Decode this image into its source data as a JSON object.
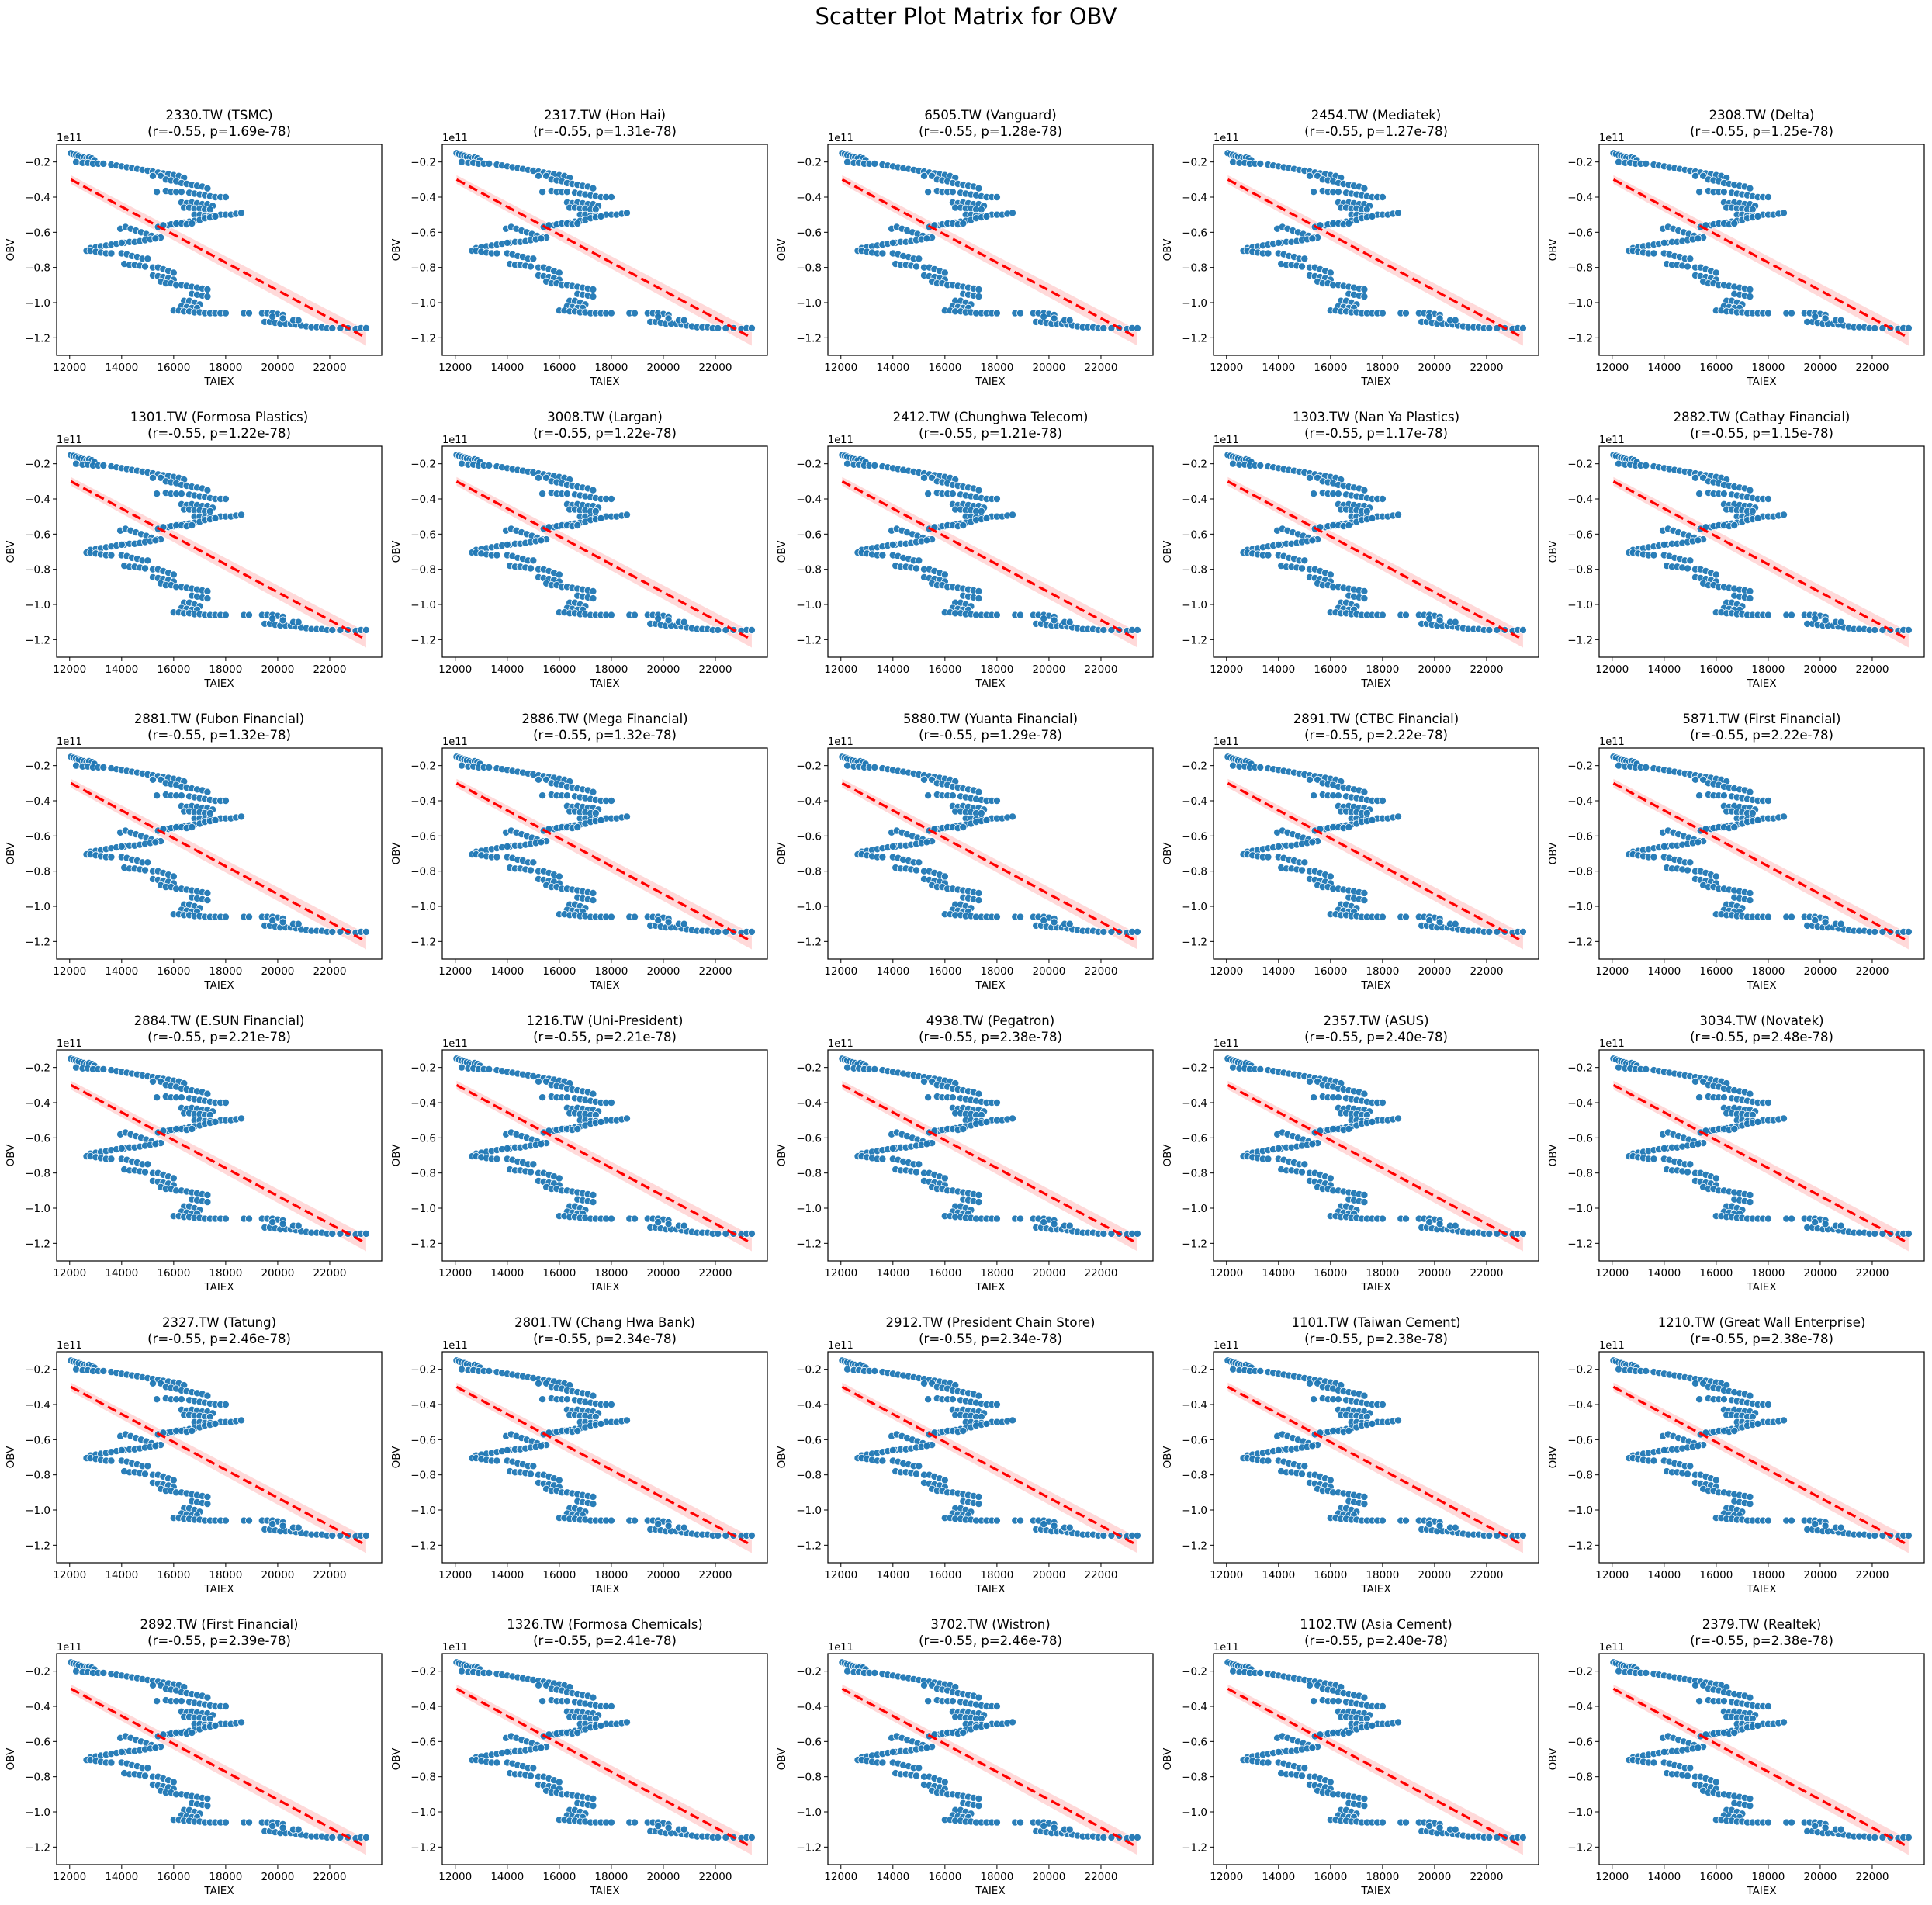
{
  "figure_title": "Scatter Plot Matrix for OBV",
  "chart_data": {
    "type": "scatter",
    "title": "Scatter Plot Matrix for OBV",
    "xlabel": "TAIEX",
    "ylabel": "OBV",
    "offset_label": "1e11",
    "xlim": [
      11500,
      24000
    ],
    "ylim": [
      -1.3,
      -0.1
    ],
    "xticks": [
      12000,
      14000,
      16000,
      18000,
      20000,
      22000
    ],
    "xtick_labels": [
      "12000",
      "14000",
      "16000",
      "18000",
      "20000",
      "22000"
    ],
    "yticks": [
      -0.2,
      -0.4,
      -0.6,
      -0.8,
      -1.0,
      -1.2
    ],
    "ytick_labels": [
      "−0.2",
      "−0.4",
      "−0.6",
      "−0.8",
      "−1.0",
      "−1.2"
    ],
    "grid": false,
    "point_color": "#1f77b4",
    "regression_color": "#ff0000",
    "regression_line": {
      "x": [
        12050,
        23400
      ],
      "y": [
        -0.3,
        -1.2
      ],
      "ci_halfwidth_ends": [
        0.025,
        0.045
      ]
    },
    "points_x": [
      12050,
      12150,
      12250,
      12350,
      12450,
      12550,
      12650,
      12750,
      12850,
      12950,
      12250,
      12500,
      12700,
      12900,
      13100,
      13300,
      13600,
      13800,
      14000,
      14200,
      14400,
      14600,
      14800,
      15000,
      15200,
      15400,
      15600,
      15800,
      16000,
      16200,
      16400,
      15200,
      15500,
      15700,
      15900,
      16100,
      16300,
      16500,
      16700,
      16900,
      17100,
      17300,
      15350,
      15700,
      15900,
      16100,
      16300,
      16600,
      16800,
      17000,
      17200,
      17400,
      17600,
      17800,
      18000,
      16300,
      16500,
      16700,
      16900,
      17100,
      17300,
      17500,
      16400,
      16600,
      16800,
      17000,
      17200,
      17400,
      16800,
      17000,
      17200,
      17400,
      17600,
      17800,
      18000,
      18200,
      18400,
      18600,
      15400,
      15600,
      15800,
      16000,
      16200,
      16400,
      16600,
      16800,
      17000,
      17200,
      17400,
      17600,
      15600,
      15900,
      16100,
      16300,
      16500,
      16700,
      13950,
      14150,
      14350,
      14550,
      14750,
      14950,
      15150,
      15350,
      15500,
      14100,
      14300,
      14500,
      14700,
      14900,
      15100,
      15300,
      12800,
      13000,
      13200,
      13400,
      13600,
      13800,
      14000,
      12650,
      12800,
      13000,
      13200,
      13400,
      13600,
      14000,
      14200,
      14400,
      14600,
      14800,
      15000,
      14100,
      14300,
      14500,
      14700,
      14900,
      15200,
      15400,
      15600,
      15800,
      16000,
      15200,
      15400,
      15600,
      15800,
      16000,
      15500,
      15700,
      15900,
      16100,
      16300,
      16500,
      16700,
      16900,
      17100,
      17300,
      16700,
      16900,
      17100,
      17300,
      16400,
      16600,
      16800,
      17000,
      16300,
      16500,
      16700,
      16900,
      16000,
      16200,
      16400,
      16600,
      16800,
      17000,
      17200,
      17400,
      17600,
      17800,
      18000,
      18700,
      18900,
      19400,
      19600,
      19800,
      20000,
      20200,
      19500,
      19700,
      19900,
      20100,
      20300,
      20500,
      20700,
      20900,
      21100,
      21300,
      21500,
      21700,
      21900,
      22100,
      22400,
      22700,
      23000,
      23200,
      23400,
      19800,
      20200,
      20600,
      20800
    ],
    "points_y": [
      -0.15,
      -0.155,
      -0.16,
      -0.165,
      -0.17,
      -0.175,
      -0.18,
      -0.175,
      -0.18,
      -0.19,
      -0.2,
      -0.205,
      -0.205,
      -0.21,
      -0.21,
      -0.21,
      -0.215,
      -0.22,
      -0.225,
      -0.23,
      -0.235,
      -0.24,
      -0.245,
      -0.25,
      -0.255,
      -0.26,
      -0.265,
      -0.27,
      -0.275,
      -0.28,
      -0.29,
      -0.28,
      -0.28,
      -0.3,
      -0.305,
      -0.31,
      -0.32,
      -0.325,
      -0.33,
      -0.335,
      -0.34,
      -0.35,
      -0.37,
      -0.365,
      -0.37,
      -0.37,
      -0.37,
      -0.375,
      -0.38,
      -0.385,
      -0.39,
      -0.395,
      -0.4,
      -0.4,
      -0.4,
      -0.43,
      -0.435,
      -0.43,
      -0.435,
      -0.44,
      -0.44,
      -0.45,
      -0.46,
      -0.46,
      -0.465,
      -0.465,
      -0.47,
      -0.47,
      -0.5,
      -0.5,
      -0.505,
      -0.505,
      -0.51,
      -0.5,
      -0.5,
      -0.5,
      -0.495,
      -0.49,
      -0.57,
      -0.565,
      -0.56,
      -0.555,
      -0.55,
      -0.545,
      -0.54,
      -0.535,
      -0.53,
      -0.52,
      -0.515,
      -0.51,
      -0.56,
      -0.555,
      -0.55,
      -0.55,
      -0.555,
      -0.55,
      -0.58,
      -0.57,
      -0.58,
      -0.59,
      -0.6,
      -0.61,
      -0.62,
      -0.63,
      -0.63,
      -0.66,
      -0.655,
      -0.655,
      -0.65,
      -0.645,
      -0.64,
      -0.635,
      -0.69,
      -0.685,
      -0.68,
      -0.675,
      -0.67,
      -0.665,
      -0.66,
      -0.705,
      -0.705,
      -0.71,
      -0.715,
      -0.72,
      -0.72,
      -0.72,
      -0.725,
      -0.735,
      -0.74,
      -0.75,
      -0.75,
      -0.78,
      -0.785,
      -0.785,
      -0.79,
      -0.795,
      -0.8,
      -0.8,
      -0.81,
      -0.82,
      -0.83,
      -0.845,
      -0.85,
      -0.855,
      -0.86,
      -0.87,
      -0.88,
      -0.89,
      -0.89,
      -0.9,
      -0.9,
      -0.905,
      -0.91,
      -0.915,
      -0.92,
      -0.925,
      -0.95,
      -0.955,
      -0.96,
      -0.965,
      -0.99,
      -0.99,
      -1.0,
      -1.01,
      -1.02,
      -1.025,
      -1.03,
      -1.03,
      -1.045,
      -1.045,
      -1.05,
      -1.05,
      -1.055,
      -1.055,
      -1.06,
      -1.06,
      -1.06,
      -1.06,
      -1.06,
      -1.06,
      -1.06,
      -1.06,
      -1.06,
      -1.06,
      -1.065,
      -1.07,
      -1.11,
      -1.11,
      -1.115,
      -1.12,
      -1.12,
      -1.12,
      -1.125,
      -1.13,
      -1.135,
      -1.14,
      -1.14,
      -1.14,
      -1.145,
      -1.145,
      -1.145,
      -1.145,
      -1.15,
      -1.145,
      -1.145,
      -1.08,
      -1.09,
      -1.1,
      -1.1
    ],
    "panels": [
      {
        "title": "2330.TW (TSMC)",
        "stats": "(r=-0.55, p=1.69e-78)"
      },
      {
        "title": "2317.TW (Hon Hai)",
        "stats": "(r=-0.55, p=1.31e-78)"
      },
      {
        "title": "6505.TW (Vanguard)",
        "stats": "(r=-0.55, p=1.28e-78)"
      },
      {
        "title": "2454.TW (Mediatek)",
        "stats": "(r=-0.55, p=1.27e-78)"
      },
      {
        "title": "2308.TW (Delta)",
        "stats": "(r=-0.55, p=1.25e-78)"
      },
      {
        "title": "1301.TW (Formosa Plastics)",
        "stats": "(r=-0.55, p=1.22e-78)"
      },
      {
        "title": "3008.TW (Largan)",
        "stats": "(r=-0.55, p=1.22e-78)"
      },
      {
        "title": "2412.TW (Chunghwa Telecom)",
        "stats": "(r=-0.55, p=1.21e-78)"
      },
      {
        "title": "1303.TW (Nan Ya Plastics)",
        "stats": "(r=-0.55, p=1.17e-78)"
      },
      {
        "title": "2882.TW (Cathay Financial)",
        "stats": "(r=-0.55, p=1.15e-78)"
      },
      {
        "title": "2881.TW (Fubon Financial)",
        "stats": "(r=-0.55, p=1.32e-78)"
      },
      {
        "title": "2886.TW (Mega Financial)",
        "stats": "(r=-0.55, p=1.32e-78)"
      },
      {
        "title": "5880.TW (Yuanta Financial)",
        "stats": "(r=-0.55, p=1.29e-78)"
      },
      {
        "title": "2891.TW (CTBC Financial)",
        "stats": "(r=-0.55, p=2.22e-78)"
      },
      {
        "title": "5871.TW (First Financial)",
        "stats": "(r=-0.55, p=2.22e-78)"
      },
      {
        "title": "2884.TW (E.SUN Financial)",
        "stats": "(r=-0.55, p=2.21e-78)"
      },
      {
        "title": "1216.TW (Uni-President)",
        "stats": "(r=-0.55, p=2.21e-78)"
      },
      {
        "title": "4938.TW (Pegatron)",
        "stats": "(r=-0.55, p=2.38e-78)"
      },
      {
        "title": "2357.TW (ASUS)",
        "stats": "(r=-0.55, p=2.40e-78)"
      },
      {
        "title": "3034.TW (Novatek)",
        "stats": "(r=-0.55, p=2.48e-78)"
      },
      {
        "title": "2327.TW (Tatung)",
        "stats": "(r=-0.55, p=2.46e-78)"
      },
      {
        "title": "2801.TW (Chang Hwa Bank)",
        "stats": "(r=-0.55, p=2.34e-78)"
      },
      {
        "title": "2912.TW (President Chain Store)",
        "stats": "(r=-0.55, p=2.34e-78)"
      },
      {
        "title": "1101.TW (Taiwan Cement)",
        "stats": "(r=-0.55, p=2.38e-78)"
      },
      {
        "title": "1210.TW (Great Wall Enterprise)",
        "stats": "(r=-0.55, p=2.38e-78)"
      },
      {
        "title": "2892.TW (First Financial)",
        "stats": "(r=-0.55, p=2.39e-78)"
      },
      {
        "title": "1326.TW (Formosa Chemicals)",
        "stats": "(r=-0.55, p=2.41e-78)"
      },
      {
        "title": "3702.TW (Wistron)",
        "stats": "(r=-0.55, p=2.46e-78)"
      },
      {
        "title": "1102.TW (Asia Cement)",
        "stats": "(r=-0.55, p=2.40e-78)"
      },
      {
        "title": "2379.TW (Realtek)",
        "stats": "(r=-0.55, p=2.38e-78)"
      }
    ]
  }
}
